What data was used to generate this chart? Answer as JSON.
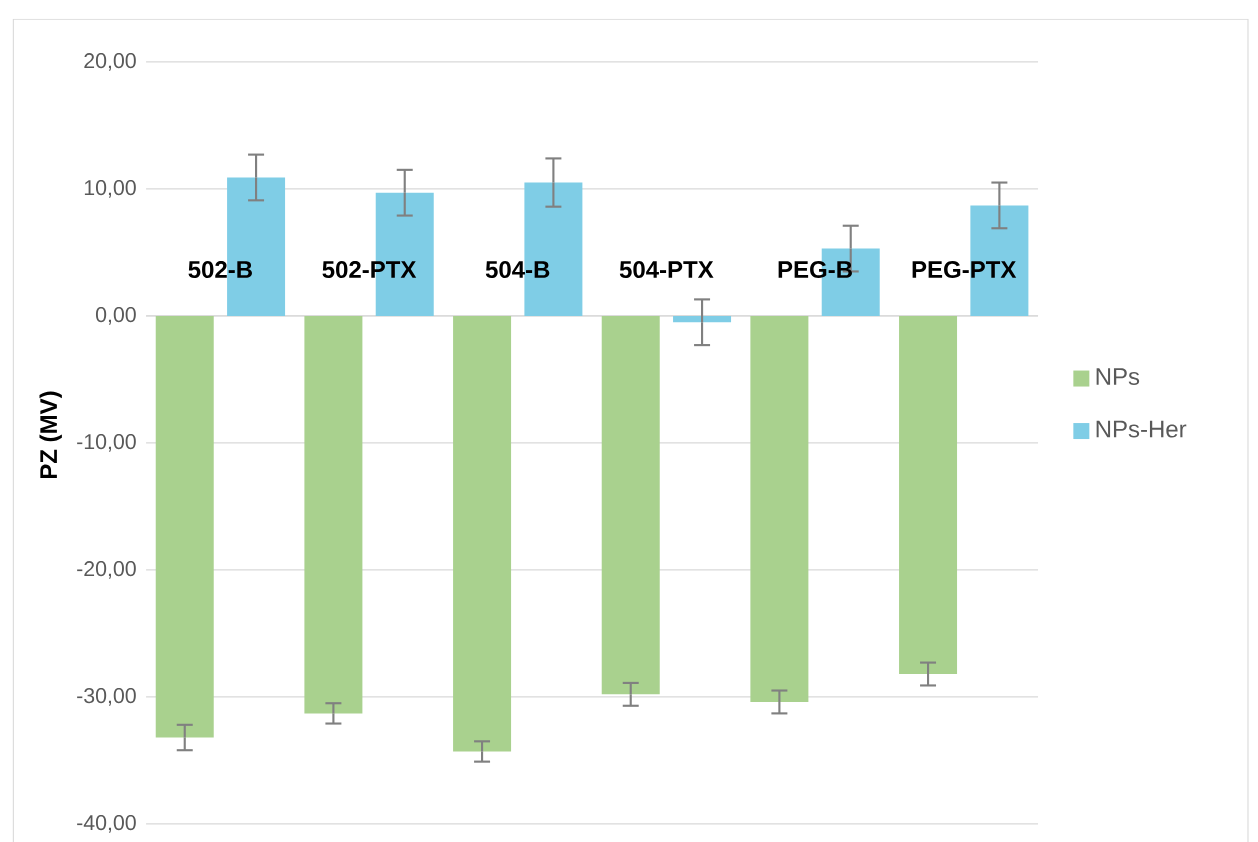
{
  "chart_data": {
    "type": "bar",
    "ylabel": "PZ (MV)",
    "categories": [
      "502-B",
      "502-PTX",
      "504-B",
      "504-PTX",
      "PEG-B",
      "PEG-PTX"
    ],
    "series": [
      {
        "name": "NPs",
        "color": "#a9d18e",
        "values": [
          -33.2,
          -31.3,
          -34.3,
          -29.8,
          -30.4,
          -28.2
        ],
        "errors": [
          1.0,
          0.8,
          0.8,
          0.9,
          0.9,
          0.9
        ]
      },
      {
        "name": "NPs-Her",
        "color": "#7fcde6",
        "values": [
          10.9,
          9.7,
          10.5,
          -0.5,
          5.3,
          8.7
        ],
        "errors": [
          1.8,
          1.8,
          1.9,
          1.8,
          1.8,
          1.8
        ]
      }
    ],
    "ylim": [
      -40,
      20
    ],
    "yticks": [
      {
        "value": -40,
        "label": "-40,00"
      },
      {
        "value": -30,
        "label": "-30,00"
      },
      {
        "value": -20,
        "label": "-20,00"
      },
      {
        "value": -10,
        "label": "-10,00"
      },
      {
        "value": 0,
        "label": "0,00"
      },
      {
        "value": 10,
        "label": "10,00"
      },
      {
        "value": 20,
        "label": "20,00"
      }
    ],
    "grid": "y",
    "legend": "right"
  }
}
